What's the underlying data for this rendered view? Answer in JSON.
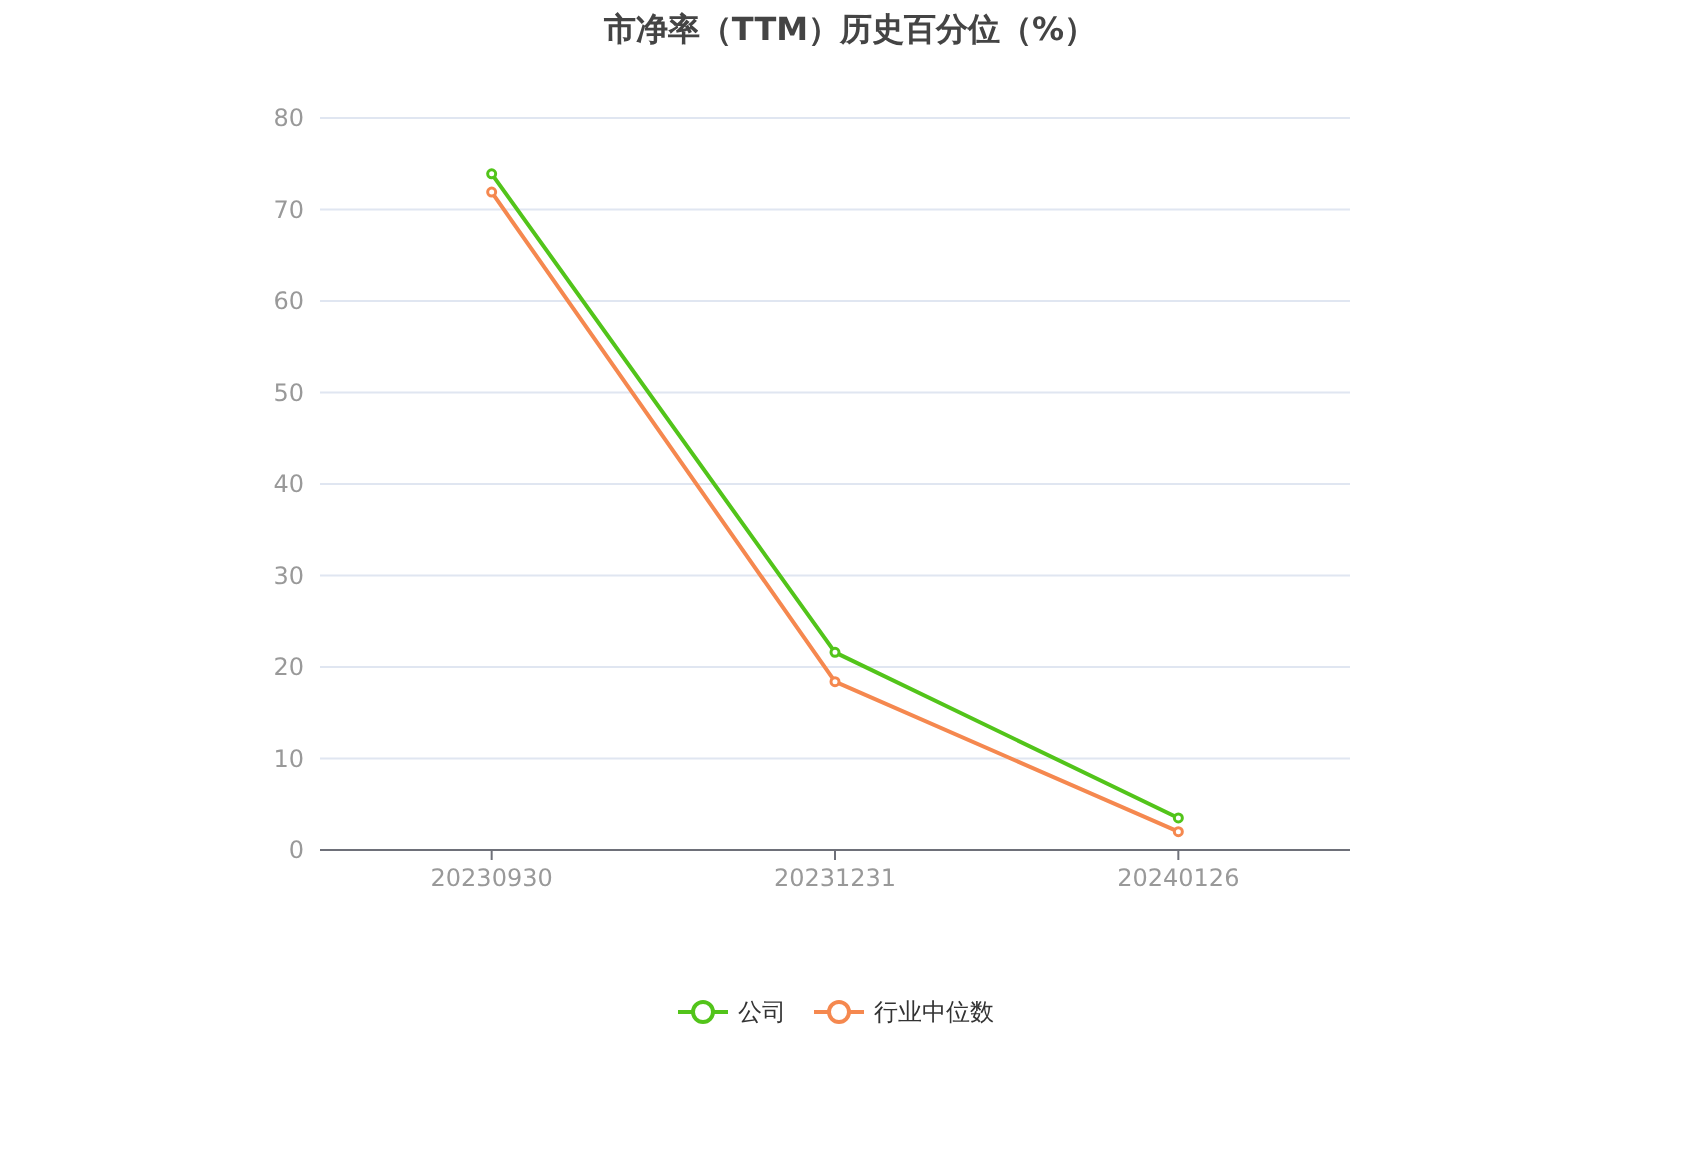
{
  "chart_data": {
    "type": "line",
    "title": "市净率（TTM）历史百分位（%）",
    "categories": [
      "20230930",
      "20231231",
      "20240126"
    ],
    "series": [
      {
        "name": "公司",
        "color": "#52c41a",
        "values": [
          73.9,
          21.6,
          3.5
        ]
      },
      {
        "name": "行业中位数",
        "color": "#f5884f",
        "values": [
          71.9,
          18.4,
          2.0
        ]
      }
    ],
    "ylim": [
      0,
      80
    ],
    "yticks": [
      0,
      10,
      20,
      30,
      40,
      50,
      60,
      70,
      80
    ],
    "grid": "y",
    "legend": "bottom",
    "marker": "circle"
  }
}
